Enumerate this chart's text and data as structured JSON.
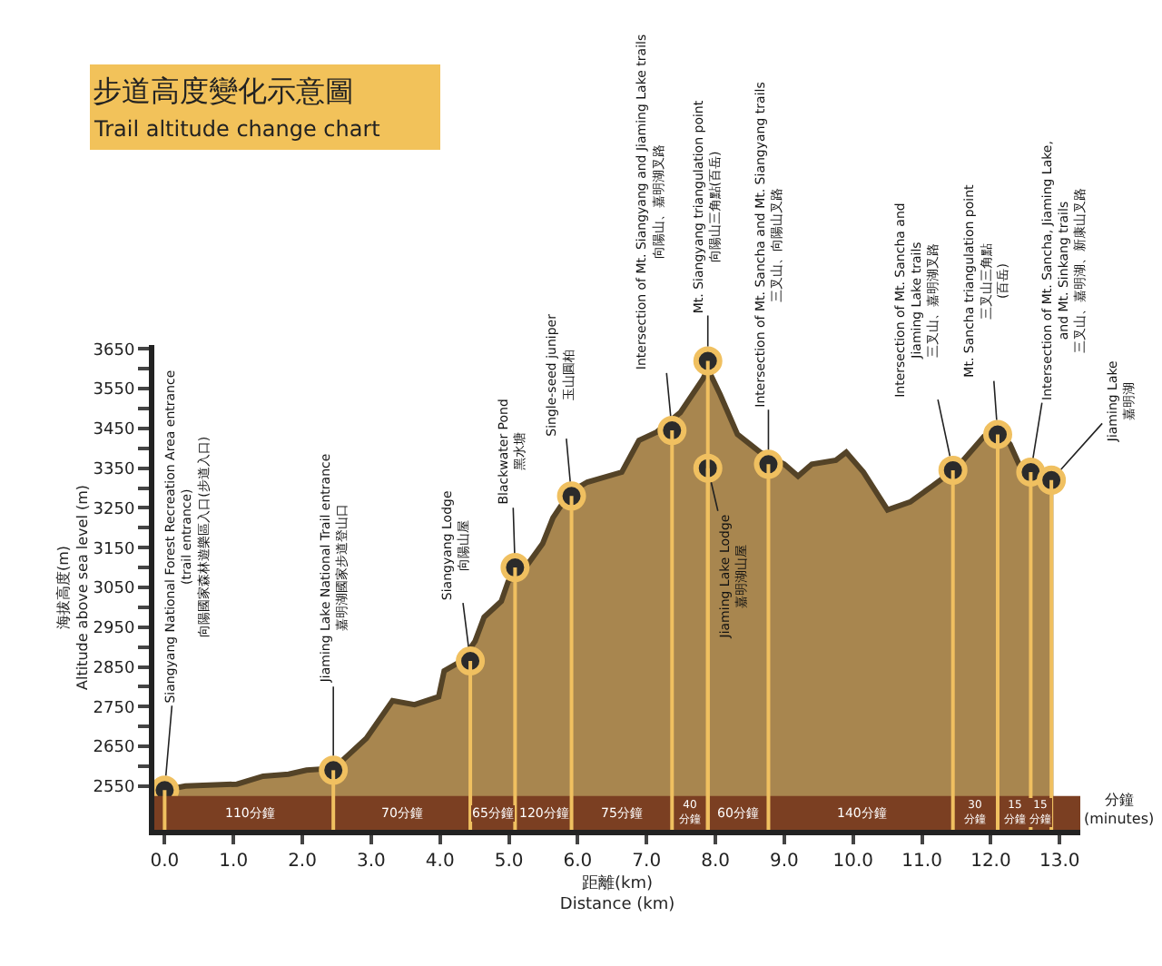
{
  "chart_data": {
    "type": "area",
    "title": "步道高度變化示意圖",
    "subtitle": "Trail altitude change chart",
    "xlabel": "距離(km)\nDistance (km)",
    "ylabel": "海拔高度(m)\nAltitude above sea level (m)",
    "series": [
      {
        "color": "#a8864f",
        "x": [
          0,
          0.3,
          1.05,
          1.43,
          1.8,
          2.06,
          2.46,
          2.93,
          3.31,
          3.63,
          3.98,
          4.06,
          4.31,
          4.51,
          4.64,
          4.89,
          4.99,
          5.24,
          5.49,
          5.64,
          5.89,
          6.14,
          6.64,
          6.89,
          7.14,
          7.49,
          7.82,
          7.89,
          8.07,
          8.32,
          8.65,
          9.0,
          9.2,
          9.4,
          9.75,
          9.9,
          10.15,
          10.5,
          10.83,
          11.15,
          11.5,
          11.9,
          12.08,
          12.28,
          12.41,
          12.63,
          12.91
        ],
        "values": [
          2540,
          2550,
          2555,
          2575,
          2580,
          2590,
          2595,
          2670,
          2765,
          2755,
          2775,
          2840,
          2865,
          2915,
          2975,
          3015,
          3065,
          3100,
          3160,
          3225,
          3290,
          3315,
          3340,
          3420,
          3440,
          3490,
          3575,
          3600,
          3535,
          3435,
          3390,
          3360,
          3330,
          3360,
          3370,
          3390,
          3340,
          3245,
          3265,
          3305,
          3350,
          3430,
          3450,
          3410,
          3360,
          3340,
          3325
        ]
      },
      {
        "type": "lollipop",
        "marker": "circle",
        "color": "#f0c060",
        "x": [
          0,
          2.45,
          4.44,
          5.09,
          5.91,
          7.37,
          7.89,
          7.89,
          8.77,
          11.45,
          12.1,
          12.58,
          12.88
        ],
        "values": [
          2540,
          2590,
          2865,
          3100,
          3280,
          3445,
          3620,
          3350,
          3360,
          3345,
          3435,
          3340,
          3320
        ]
      }
    ],
    "xlim": [
      -0.15,
      13.3
    ],
    "xticks": [
      {
        "value": 0,
        "label": "0.0"
      },
      {
        "value": 1,
        "label": "1.0"
      },
      {
        "value": 2,
        "label": "2.0"
      },
      {
        "value": 3,
        "label": "3.0"
      },
      {
        "value": 4,
        "label": "4.0"
      },
      {
        "value": 5,
        "label": "5.0"
      },
      {
        "value": 6,
        "label": "6.0"
      },
      {
        "value": 7,
        "label": "7.0"
      },
      {
        "value": 8,
        "label": "8.0"
      },
      {
        "value": 9,
        "label": "9.0"
      },
      {
        "value": 10,
        "label": "10.0"
      },
      {
        "value": 11,
        "label": "11.0"
      },
      {
        "value": 12,
        "label": "12.0"
      },
      {
        "value": 13,
        "label": "13.0"
      }
    ],
    "ylim": [
      2440,
      3660
    ],
    "yticks": [
      2550,
      {
        "value": 2600,
        "label": null
      },
      2650,
      {
        "value": 2700,
        "label": null
      },
      2750,
      {
        "value": 2800,
        "label": null
      },
      2850,
      {
        "value": 2900,
        "label": null
      },
      2950,
      {
        "value": 3000,
        "label": null
      },
      3050,
      {
        "value": 3100,
        "label": null
      },
      3150,
      {
        "value": 3200,
        "label": null
      },
      3250,
      {
        "value": 3300,
        "label": null
      },
      3350,
      {
        "value": 3400,
        "label": null
      },
      3450,
      {
        "value": 3500,
        "label": null
      },
      3550,
      {
        "value": 3600,
        "label": null
      },
      3650
    ],
    "bands": [
      {
        "axis": "y",
        "from": 2440,
        "to": 2525,
        "color": "#7b3f22"
      }
    ],
    "annotations": [
      {
        "text": "Siangyang National Forest Recreation Area entrance\n(trail entrance)\n向陽國家森林遊樂區入口(步道入口)",
        "x": 0,
        "y": 2540
      },
      {
        "text": "Jiaming Lake National Trail entrance\n嘉明湖國家步道登山口",
        "x": 2.45,
        "y": 2590
      },
      {
        "text": "Siangyang Lodge\n向陽山屋",
        "x": 4.44,
        "y": 2865
      },
      {
        "text": "Blackwater Pond\n黑水塘",
        "x": 5.09,
        "y": 3100
      },
      {
        "text": "Single-seed juniper\n玉山圓柏",
        "x": 5.91,
        "y": 3280
      },
      {
        "text": "Intersection of Mt. Siangyang and Jiaming Lake trails\n向陽山、嘉明湖叉路",
        "x": 7.37,
        "y": 3445
      },
      {
        "text": "Mt. Siangyang triangulation point\n向陽山三角點(百岳)",
        "x": 7.89,
        "y": 3620
      },
      {
        "text": "Jiaming Lake Lodge\n嘉明湖山屋",
        "x": 7.89,
        "y": 3350
      },
      {
        "text": "Intersection of Mt. Sancha and Mt. Siangyang trails\n三叉山、向陽山叉路",
        "x": 8.77,
        "y": 3360
      },
      {
        "text": "Intersection of Mt. Sancha and\nJiaming Lake trails\n三叉山、嘉明湖叉路",
        "x": 11.45,
        "y": 3345
      },
      {
        "text": "Mt. Sancha triangulation point\n三叉山三角點\n(百岳)",
        "x": 12.1,
        "y": 3435
      },
      {
        "text": "Intersection of Mt. Sancha, Jiaming Lake,\nand Mt. Sinkang trails\n三叉山、嘉明湖、新康山叉路",
        "x": 12.58,
        "y": 3340
      },
      {
        "text": "Jiaming Lake\n嘉明湖",
        "x": 12.88,
        "y": 3320
      },
      "110分鐘",
      "70分鐘",
      "65分鐘",
      "120分鐘",
      "75分鐘",
      "40\n分鐘",
      "60分鐘",
      "140分鐘",
      "30\n分鐘",
      "15\n分鐘",
      "15\n分鐘",
      "分鐘\n(minutes)"
    ]
  }
}
